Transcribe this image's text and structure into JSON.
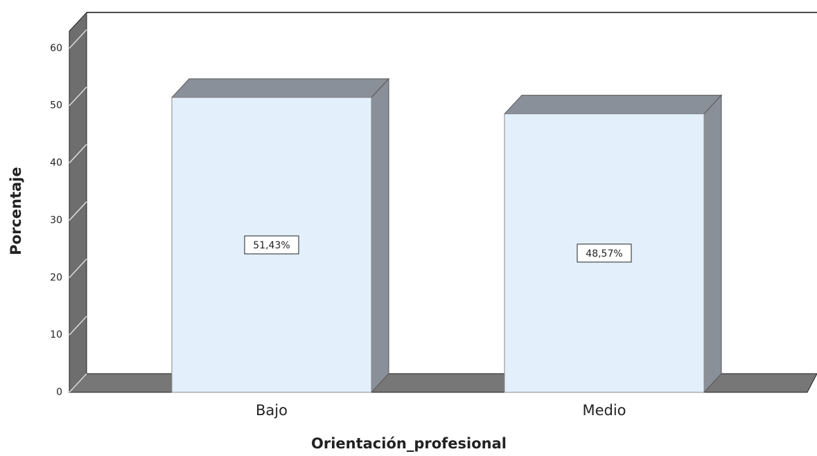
{
  "chart_data": {
    "type": "bar",
    "categories": [
      "Bajo",
      "Medio"
    ],
    "values": [
      51.43,
      48.57
    ],
    "value_labels": [
      "51,43%",
      "48,57%"
    ],
    "color": "#e3effb",
    "ylim": [
      0,
      63
    ],
    "yticks": [
      0,
      10,
      20,
      30,
      40,
      50,
      60
    ],
    "ylabel": "Porcentaje",
    "xlabel": "Orientación_profesional",
    "grid": false
  }
}
